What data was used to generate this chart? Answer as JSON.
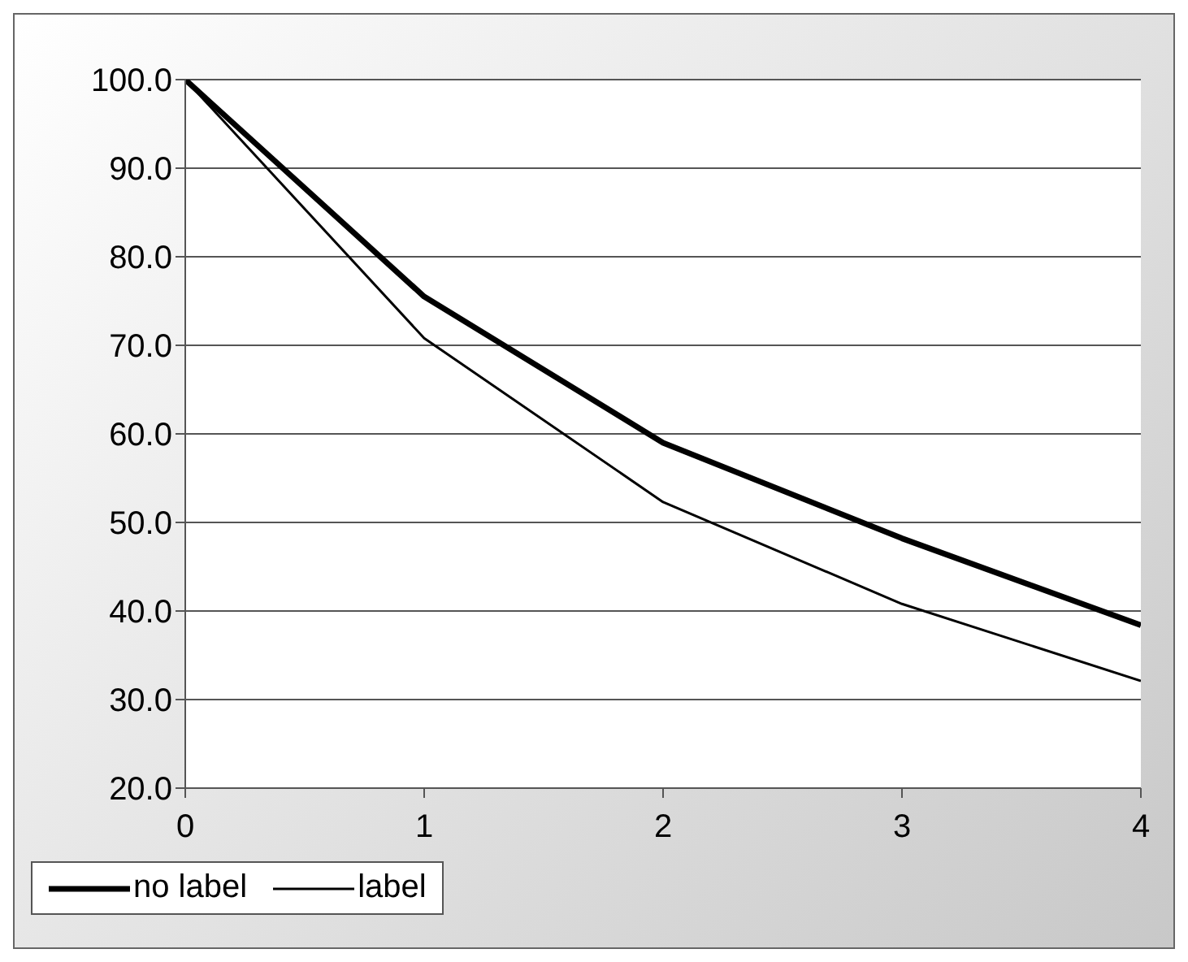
{
  "chart_data": {
    "type": "line",
    "x": [
      0,
      1,
      2,
      3,
      4
    ],
    "series": [
      {
        "name": "no label",
        "color": "#000000",
        "values": [
          100,
          75.5,
          59.0,
          48.2,
          38.4
        ]
      },
      {
        "name": "label",
        "color": "#000000",
        "values": [
          100,
          70.8,
          52.3,
          40.8,
          32.1
        ]
      }
    ],
    "xlim": [
      0,
      4
    ],
    "xticks": [
      0,
      1,
      2,
      3,
      4
    ],
    "ylim": [
      20,
      100
    ],
    "yticks": [
      {
        "value": 20,
        "label": "20.0"
      },
      {
        "value": 30,
        "label": "30.0"
      },
      {
        "value": 40,
        "label": "40.0"
      },
      {
        "value": 50,
        "label": "50.0"
      },
      {
        "value": 60,
        "label": "60.0"
      },
      {
        "value": 70,
        "label": "70.0"
      },
      {
        "value": 80,
        "label": "80.0"
      },
      {
        "value": 90,
        "label": "90.0"
      },
      {
        "value": 100,
        "label": "100.0"
      }
    ],
    "grid": "y",
    "legend": "bottom",
    "marker": "none",
    "line_style": "solid"
  }
}
